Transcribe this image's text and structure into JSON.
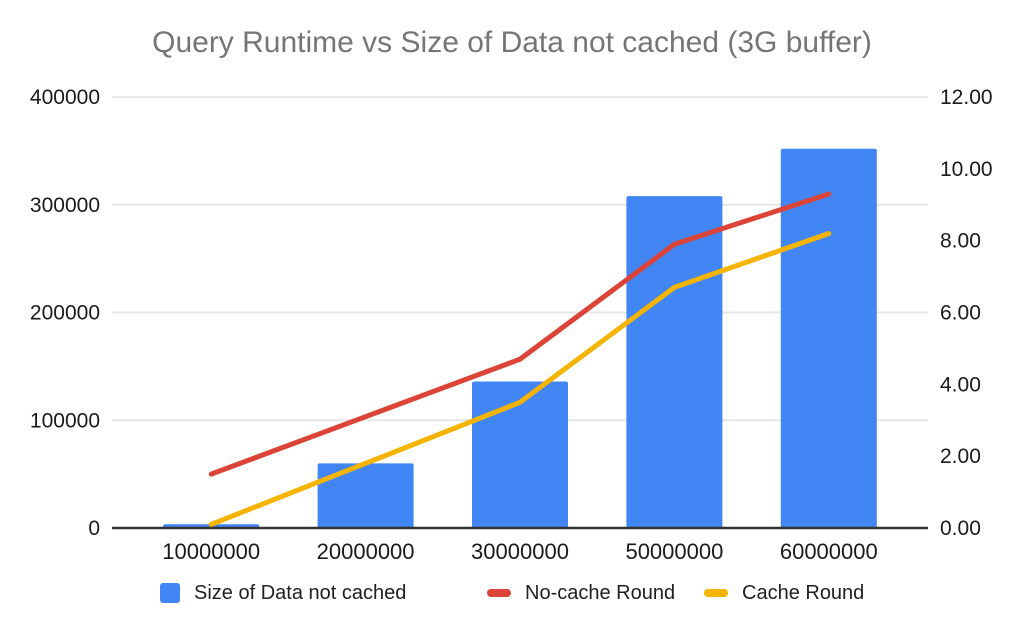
{
  "chart_data": {
    "type": "combo",
    "title": "Query Runtime vs Size of Data not cached (3G buffer)",
    "categories": [
      "10000000",
      "20000000",
      "30000000",
      "50000000",
      "60000000"
    ],
    "series": [
      {
        "name": "Size of Data not cached",
        "type": "bar",
        "axis": "left",
        "color": "#4285F4",
        "values": [
          3500,
          60000,
          136000,
          308000,
          352000
        ]
      },
      {
        "name": "No-cache Round",
        "type": "line",
        "axis": "right",
        "color": "#DB4437",
        "values": [
          1.5,
          3.1,
          4.7,
          7.9,
          9.3
        ]
      },
      {
        "name": "Cache Round",
        "type": "line",
        "axis": "right",
        "color": "#F4B400",
        "values": [
          0.1,
          1.8,
          3.5,
          6.7,
          8.2
        ]
      }
    ],
    "left_axis": {
      "min": 0,
      "max": 400000,
      "tick_values": [
        0,
        100000,
        200000,
        300000,
        400000
      ],
      "tick_labels": [
        "0",
        "100000",
        "200000",
        "300000",
        "400000"
      ]
    },
    "right_axis": {
      "min": 0,
      "max": 12,
      "tick_values": [
        0,
        2,
        4,
        6,
        8,
        10,
        12
      ],
      "tick_labels": [
        "0.00",
        "2.00",
        "4.00",
        "6.00",
        "8.00",
        "10.00",
        "12.00"
      ]
    },
    "grid": true,
    "legend_position": "bottom",
    "style": {
      "background": "#ffffff",
      "title_color": "#757575",
      "axis_label_color": "#1a1a1a",
      "grid_color": "#e6e6e6",
      "axis_line_color": "#333333",
      "legend_text_color": "#1f1f1f"
    }
  }
}
